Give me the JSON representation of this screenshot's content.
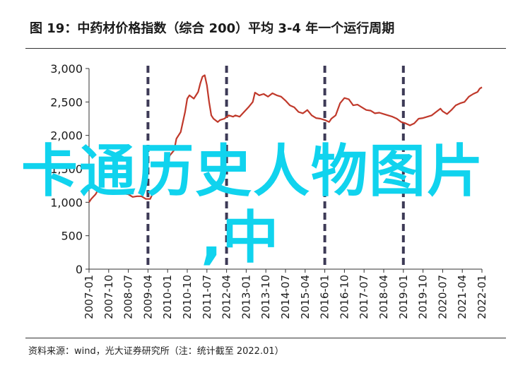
{
  "title": "图 19：中药材价格指数（综合 200）平均 3-4 年一个运行周期",
  "source": "资料来源：wind，光大证券研究所（注：统计截至 2022.01）",
  "overlay": {
    "line1": "卡通历史人物图片",
    "line2": ",中"
  },
  "chart_data": {
    "type": "line",
    "title": "",
    "xlabel": "",
    "ylabel": "",
    "ylim": [
      0,
      3000
    ],
    "yticks": [
      {
        "value": 0,
        "label": "0"
      },
      {
        "value": 500,
        "label": "500"
      },
      {
        "value": 1000,
        "label": "1,000"
      },
      {
        "value": 1500,
        "label": "1,500"
      },
      {
        "value": 2000,
        "label": "2,000"
      },
      {
        "value": 2500,
        "label": "2,500"
      },
      {
        "value": 3000,
        "label": "3,000"
      }
    ],
    "xticks": [
      "2007-01",
      "2007-10",
      "2008-07",
      "2009-04",
      "2010-01",
      "2010-10",
      "2011-07",
      "2012-04",
      "2013-01",
      "2013-10",
      "2014-07",
      "2015-04",
      "2016-01",
      "2016-10",
      "2017-07",
      "2018-04",
      "2019-01",
      "2019-10",
      "2020-07",
      "2021-04",
      "2022-01"
    ],
    "cycle_markers": [
      "2009-04",
      "2012-04",
      "2016-01",
      "2019-01"
    ],
    "line_color": "#c0392b",
    "marker_color": "#3d3a56",
    "accent_color": "#10d3ee",
    "grid": false,
    "series": [
      {
        "points": [
          [
            "2007-01",
            1000
          ],
          [
            "2007-02",
            1050
          ],
          [
            "2007-04",
            1120
          ],
          [
            "2007-05",
            1180
          ],
          [
            "2007-07",
            1180
          ],
          [
            "2007-08",
            1130
          ],
          [
            "2007-10",
            1150
          ],
          [
            "2007-11",
            1180
          ],
          [
            "2008-01",
            1180
          ],
          [
            "2008-03",
            1150
          ],
          [
            "2008-05",
            1130
          ],
          [
            "2008-07",
            1120
          ],
          [
            "2008-09",
            1080
          ],
          [
            "2008-11",
            1090
          ],
          [
            "2009-01",
            1090
          ],
          [
            "2009-03",
            1050
          ],
          [
            "2009-05",
            1050
          ],
          [
            "2009-06",
            1120
          ],
          [
            "2009-08",
            1220
          ],
          [
            "2009-10",
            1300
          ],
          [
            "2009-12",
            1500
          ],
          [
            "2010-02",
            1700
          ],
          [
            "2010-04",
            1780
          ],
          [
            "2010-05",
            1950
          ],
          [
            "2010-07",
            2050
          ],
          [
            "2010-09",
            2350
          ],
          [
            "2010-10",
            2550
          ],
          [
            "2010-11",
            2600
          ],
          [
            "2011-01",
            2550
          ],
          [
            "2011-03",
            2650
          ],
          [
            "2011-04",
            2780
          ],
          [
            "2011-05",
            2880
          ],
          [
            "2011-06",
            2900
          ],
          [
            "2011-07",
            2750
          ],
          [
            "2011-08",
            2500
          ],
          [
            "2011-09",
            2300
          ],
          [
            "2011-10",
            2250
          ],
          [
            "2011-12",
            2200
          ],
          [
            "2012-01",
            2230
          ],
          [
            "2012-03",
            2250
          ],
          [
            "2012-05",
            2300
          ],
          [
            "2012-07",
            2280
          ],
          [
            "2012-08",
            2300
          ],
          [
            "2012-10",
            2280
          ],
          [
            "2012-12",
            2350
          ],
          [
            "2013-02",
            2420
          ],
          [
            "2013-04",
            2500
          ],
          [
            "2013-05",
            2640
          ],
          [
            "2013-07",
            2600
          ],
          [
            "2013-09",
            2620
          ],
          [
            "2013-11",
            2580
          ],
          [
            "2014-01",
            2630
          ],
          [
            "2014-03",
            2600
          ],
          [
            "2014-05",
            2580
          ],
          [
            "2014-07",
            2520
          ],
          [
            "2014-09",
            2450
          ],
          [
            "2014-11",
            2420
          ],
          [
            "2015-01",
            2350
          ],
          [
            "2015-03",
            2330
          ],
          [
            "2015-05",
            2380
          ],
          [
            "2015-07",
            2300
          ],
          [
            "2015-09",
            2260
          ],
          [
            "2015-11",
            2250
          ],
          [
            "2016-01",
            2230
          ],
          [
            "2016-03",
            2200
          ],
          [
            "2016-04",
            2250
          ],
          [
            "2016-06",
            2300
          ],
          [
            "2016-08",
            2480
          ],
          [
            "2016-10",
            2560
          ],
          [
            "2016-12",
            2540
          ],
          [
            "2017-02",
            2450
          ],
          [
            "2017-04",
            2460
          ],
          [
            "2017-06",
            2420
          ],
          [
            "2017-08",
            2380
          ],
          [
            "2017-10",
            2370
          ],
          [
            "2017-12",
            2330
          ],
          [
            "2018-02",
            2340
          ],
          [
            "2018-04",
            2320
          ],
          [
            "2018-06",
            2300
          ],
          [
            "2018-08",
            2280
          ],
          [
            "2018-10",
            2250
          ],
          [
            "2018-12",
            2200
          ],
          [
            "2019-02",
            2180
          ],
          [
            "2019-04",
            2150
          ],
          [
            "2019-06",
            2180
          ],
          [
            "2019-08",
            2250
          ],
          [
            "2019-10",
            2260
          ],
          [
            "2019-12",
            2280
          ],
          [
            "2020-02",
            2300
          ],
          [
            "2020-04",
            2350
          ],
          [
            "2020-06",
            2400
          ],
          [
            "2020-07",
            2360
          ],
          [
            "2020-09",
            2320
          ],
          [
            "2020-11",
            2380
          ],
          [
            "2021-01",
            2450
          ],
          [
            "2021-03",
            2480
          ],
          [
            "2021-05",
            2500
          ],
          [
            "2021-07",
            2580
          ],
          [
            "2021-09",
            2620
          ],
          [
            "2021-11",
            2650
          ],
          [
            "2021-12",
            2700
          ],
          [
            "2022-01",
            2720
          ]
        ]
      }
    ]
  }
}
